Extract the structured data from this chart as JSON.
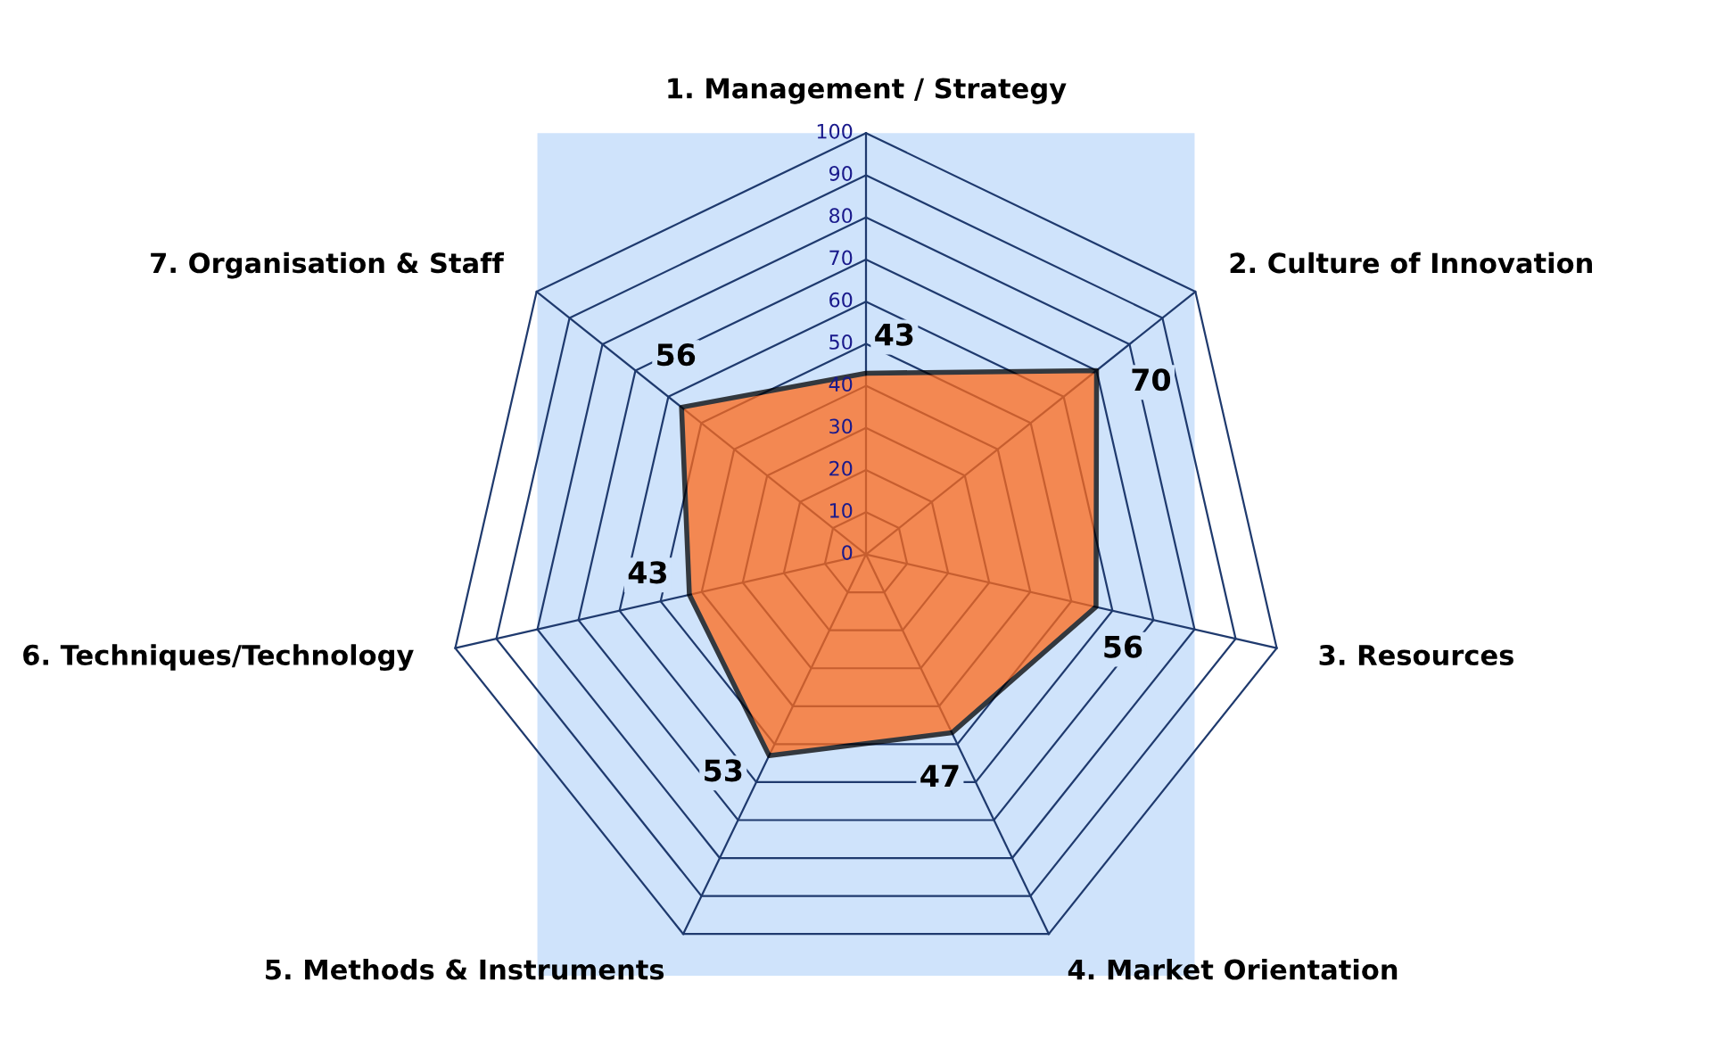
{
  "chart_data": {
    "type": "radar",
    "categories": [
      "1. Management / Strategy",
      "2. Culture of Innovation",
      "3. Resources",
      "4. Market Orientation",
      "5. Methods & Instruments",
      "6. Techniques/Technology",
      "7. Organisation & Staff"
    ],
    "series": [
      {
        "color": "#ff6a1a",
        "values": [
          43,
          70,
          56,
          47,
          53,
          43,
          56
        ]
      }
    ],
    "ylim": [
      0,
      100
    ],
    "yticks": [
      0,
      10,
      20,
      30,
      40,
      50,
      60,
      70,
      80,
      90,
      100
    ],
    "grid": true,
    "data_labels": true
  }
}
